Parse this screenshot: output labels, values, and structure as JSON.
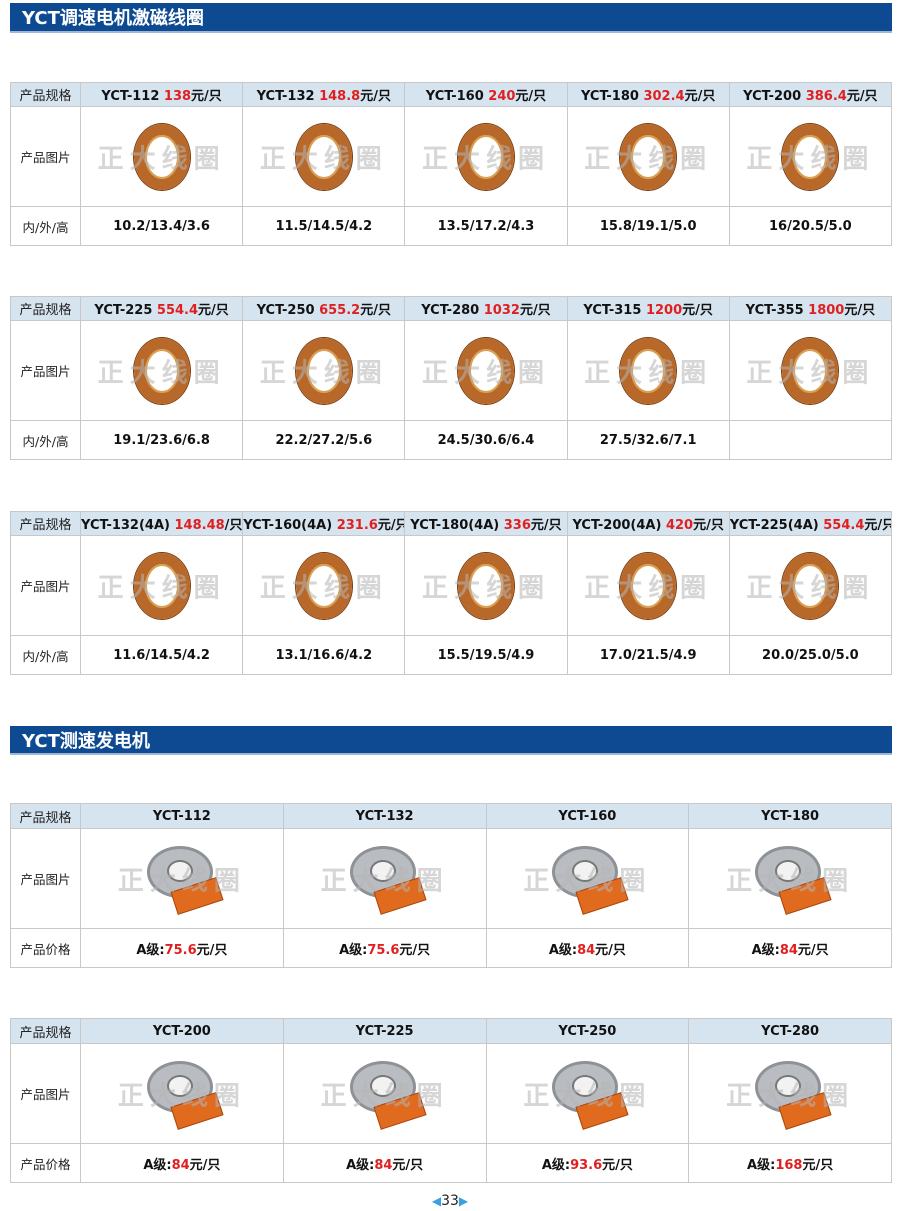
{
  "section1": {
    "title": "YCT调速电机激磁线圈"
  },
  "section2": {
    "title": "YCT测速发电机"
  },
  "labels": {
    "spec": "产品规格",
    "image": "产品图片",
    "dims": "内/外/高",
    "price": "产品价格"
  },
  "watermark": "正大线圈",
  "unit": "元/只",
  "coil_tables": [
    {
      "items": [
        {
          "model": "YCT-112",
          "price": "138",
          "dims": "10.2/13.4/3.6"
        },
        {
          "model": "YCT-132",
          "price": "148.8",
          "dims": "11.5/14.5/4.2"
        },
        {
          "model": "YCT-160",
          "price": "240",
          "dims": "13.5/17.2/4.3"
        },
        {
          "model": "YCT-180",
          "price": "302.4",
          "dims": "15.8/19.1/5.0"
        },
        {
          "model": "YCT-200",
          "price": "386.4",
          "dims": "16/20.5/5.0"
        }
      ]
    },
    {
      "items": [
        {
          "model": "YCT-225",
          "price": "554.4",
          "dims": "19.1/23.6/6.8"
        },
        {
          "model": "YCT-250",
          "price": "655.2",
          "dims": "22.2/27.2/5.6"
        },
        {
          "model": "YCT-280",
          "price": "1032",
          "dims": "24.5/30.6/6.4"
        },
        {
          "model": "YCT-315",
          "price": "1200",
          "dims": "27.5/32.6/7.1"
        },
        {
          "model": "YCT-355",
          "price": "1800",
          "dims": ""
        }
      ]
    },
    {
      "items": [
        {
          "model": "YCT-132(4A)",
          "price": "148.48",
          "unit": "/只",
          "dims": "11.6/14.5/4.2"
        },
        {
          "model": "YCT-160(4A)",
          "price": "231.6",
          "dims": "13.1/16.6/4.2"
        },
        {
          "model": "YCT-180(4A)",
          "price": "336",
          "dims": "15.5/19.5/4.9"
        },
        {
          "model": "YCT-200(4A)",
          "price": "420",
          "dims": "17.0/21.5/4.9"
        },
        {
          "model": "YCT-225(4A)",
          "price": "554.4",
          "dims": "20.0/25.0/5.0"
        }
      ]
    }
  ],
  "grade_prefix": "A级:",
  "gen_tables": [
    {
      "items": [
        {
          "model": "YCT-112",
          "price": "75.6"
        },
        {
          "model": "YCT-132",
          "price": "75.6"
        },
        {
          "model": "YCT-160",
          "price": "84"
        },
        {
          "model": "YCT-180",
          "price": "84"
        }
      ]
    },
    {
      "items": [
        {
          "model": "YCT-200",
          "price": "84"
        },
        {
          "model": "YCT-225",
          "price": "84"
        },
        {
          "model": "YCT-250",
          "price": "93.6"
        },
        {
          "model": "YCT-280",
          "price": "168"
        }
      ]
    }
  ],
  "page_number": "33"
}
